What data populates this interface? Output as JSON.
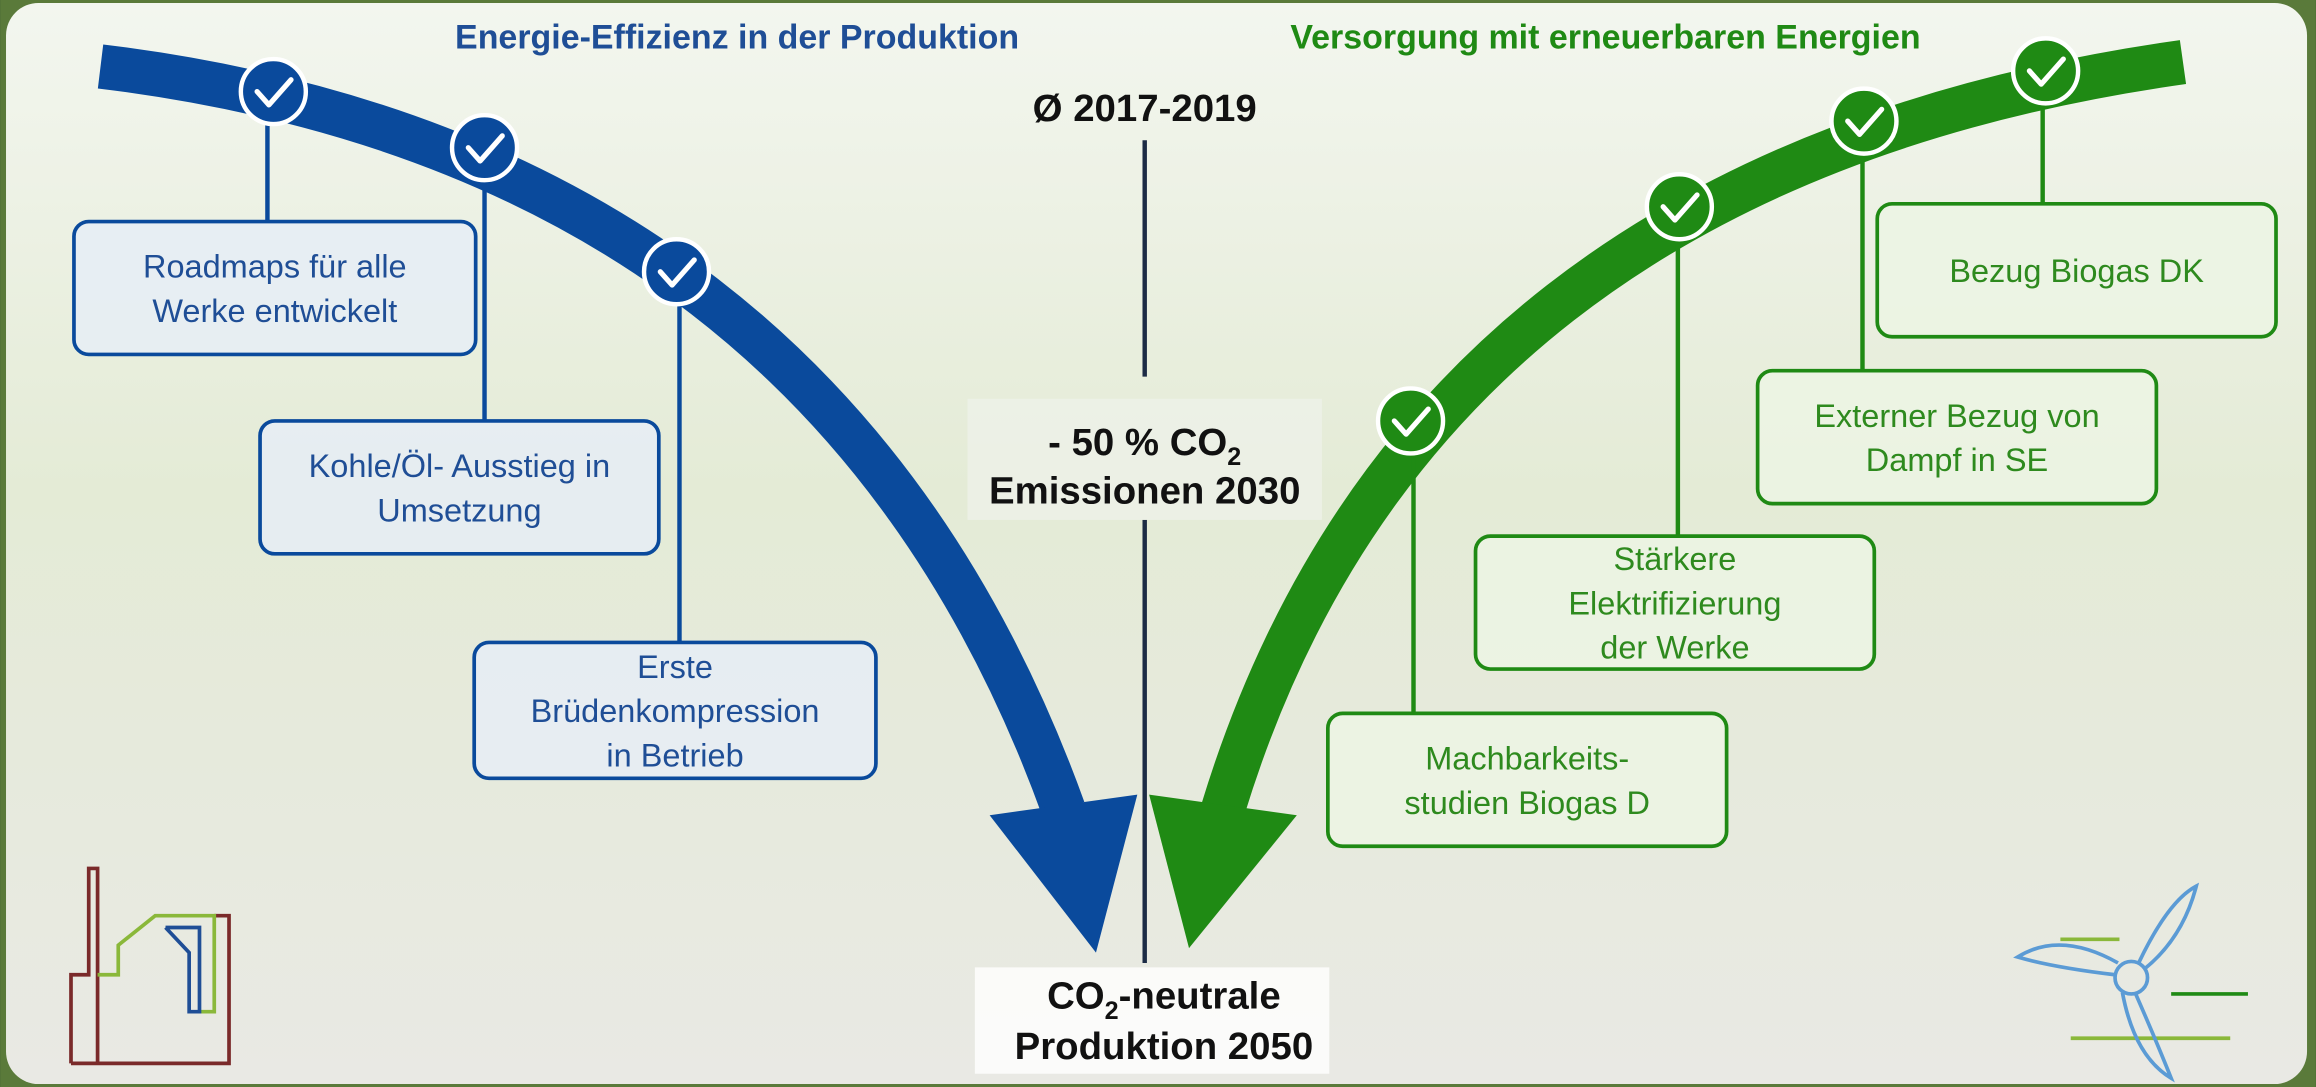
{
  "left": {
    "title": "Energie-Effizienz in der Produktion",
    "boxes": [
      {
        "lines": [
          "Roadmaps für alle",
          "Werke entwickelt"
        ]
      },
      {
        "lines": [
          "Kohle/Öl- Ausstieg in",
          "Umsetzung"
        ]
      },
      {
        "lines": [
          "Erste",
          "Brüdenkompression",
          "in Betrieb"
        ]
      }
    ]
  },
  "right": {
    "title": "Versorgung mit erneuerbaren Energien",
    "boxes": [
      {
        "lines": [
          "Bezug Biogas DK"
        ]
      },
      {
        "lines": [
          "Externer Bezug von",
          "Dampf in SE"
        ]
      },
      {
        "lines": [
          "Stärkere",
          "Elektrifizierung",
          "der Werke"
        ]
      },
      {
        "lines": [
          "Machbarkeits-",
          "studien Biogas D"
        ]
      }
    ]
  },
  "center": {
    "baseline": "Ø 2017-2019",
    "target_2030": {
      "prefix": "- 50 % CO",
      "sub": "2",
      "line2": "Emissionen 2030"
    },
    "target_2050": {
      "prefix": "CO",
      "sub": "2",
      "suffix": "-neutrale",
      "line2": "Produktion 2050"
    }
  }
}
